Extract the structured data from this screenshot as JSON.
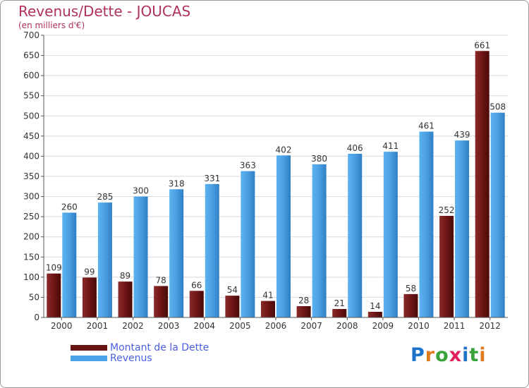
{
  "header": {
    "title": "Revenus/Dette - JOUCAS",
    "subtitle": "(en milliers d'€)"
  },
  "legend": {
    "items": [
      {
        "label": "Montant de la Dette",
        "color": "#6b1414"
      },
      {
        "label": "Revenus",
        "color": "#4aa3e6"
      }
    ]
  },
  "logo": {
    "text": "Proxiti",
    "letter_colors": [
      "#1e73c8",
      "#e07a1e",
      "#3aa23a",
      "#e01e5a",
      "#1e73c8",
      "#3aa23a",
      "#e07a1e"
    ]
  },
  "chart_data": {
    "type": "bar",
    "categories": [
      "2000",
      "2001",
      "2002",
      "2003",
      "2004",
      "2005",
      "2006",
      "2007",
      "2008",
      "2009",
      "2010",
      "2011",
      "2012"
    ],
    "series": [
      {
        "name": "Montant de la Dette",
        "values": [
          109,
          99,
          89,
          78,
          66,
          54,
          41,
          28,
          21,
          14,
          58,
          252,
          661
        ],
        "color": "#7a1a1a"
      },
      {
        "name": "Revenus",
        "values": [
          260,
          285,
          300,
          318,
          331,
          363,
          402,
          380,
          406,
          411,
          461,
          439,
          508
        ],
        "color": "#4aa3e6"
      }
    ],
    "ylim": [
      0,
      700
    ],
    "yticks": [
      "0",
      "50",
      "100",
      "150",
      "200",
      "250",
      "300",
      "350",
      "400",
      "450",
      "500",
      "550",
      "600",
      "650",
      "700"
    ],
    "grid": true,
    "legend_position": "bottom-left"
  }
}
